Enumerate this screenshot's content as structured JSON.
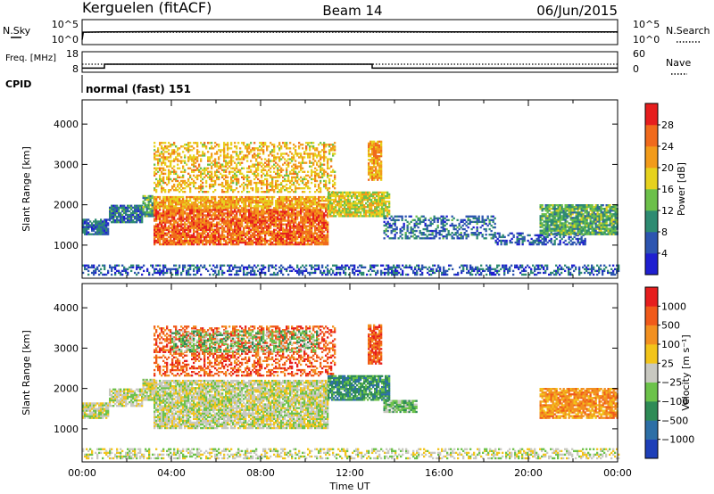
{
  "header": {
    "station": "Kerguelen (fitACF)",
    "beam": "Beam 14",
    "date": "06/Jun/2015"
  },
  "cpid_label": "CPID",
  "cpid_value": "normal (fast) 151",
  "chart_data": [
    {
      "type": "line",
      "panel": "noise",
      "left_label": "N.Sky",
      "right_label": "N.Search",
      "left_ticks": [
        "10^5",
        "10^0"
      ],
      "right_ticks": [
        "10^5",
        "10^0"
      ],
      "series": [
        {
          "name": "N.Sky",
          "style": "solid",
          "x": [
            0,
            0.05,
            1,
            4,
            8,
            12,
            16,
            20,
            24
          ],
          "y": [
            1,
            3.5,
            3.6,
            3.7,
            3.7,
            3.7,
            3.6,
            3.6,
            3.6
          ]
        },
        {
          "name": "N.Search",
          "style": "dotted",
          "x": [
            0,
            24
          ],
          "y": [
            3.5,
            3.5
          ]
        }
      ]
    },
    {
      "type": "line",
      "panel": "frequency",
      "left_label": "Freq. [MHz]",
      "right_label": "Nave",
      "left_ticks": [
        "18",
        "8"
      ],
      "right_ticks": [
        "60",
        "0"
      ],
      "left_range": [
        8,
        18
      ],
      "right_range": [
        0,
        60
      ],
      "series": [
        {
          "name": "Freq.",
          "style": "solid",
          "axis": "left",
          "x": [
            0,
            1,
            1,
            13,
            13,
            24
          ],
          "y": [
            9.8,
            9.8,
            12.0,
            12.0,
            9.8,
            9.8
          ]
        },
        {
          "name": "Nave",
          "style": "dotted",
          "axis": "right",
          "x": [
            0,
            24
          ],
          "y": [
            24,
            24
          ]
        }
      ]
    },
    {
      "type": "heatmap",
      "panel": "power",
      "xlabel": "",
      "ylabel": "Slant Range [km]",
      "colorbar_label": "Power [dB]",
      "x_range_hours": [
        0,
        24
      ],
      "ylim": [
        180,
        4600
      ],
      "y_ticks": [
        1000,
        2000,
        3000,
        4000
      ],
      "colorbar_ticks": [
        "4",
        "8",
        "12",
        "16",
        "20",
        "24",
        "28"
      ],
      "colorbar_range": [
        0,
        32
      ],
      "colors": [
        "#1f1fd0",
        "#2d55b0",
        "#2e8b72",
        "#6cc04a",
        "#e6d21e",
        "#f29b1a",
        "#f06a1c",
        "#e61e1e"
      ],
      "regions": [
        {
          "t0": 0.0,
          "t1": 24.0,
          "r0": 250,
          "r1": 520,
          "v": 6,
          "sparse": true
        },
        {
          "t0": 0.0,
          "t1": 1.2,
          "r0": 1250,
          "r1": 1650,
          "v": 7
        },
        {
          "t0": 1.2,
          "t1": 2.7,
          "r0": 1550,
          "r1": 2000,
          "v": 8
        },
        {
          "t0": 2.7,
          "t1": 3.2,
          "r0": 1700,
          "r1": 2200,
          "v": 12
        },
        {
          "t0": 3.2,
          "t1": 11.0,
          "r0": 1000,
          "r1": 1900,
          "v": 26
        },
        {
          "t0": 3.2,
          "t1": 11.0,
          "r0": 1900,
          "r1": 2200,
          "v": 21
        },
        {
          "t0": 3.2,
          "t1": 11.3,
          "r0": 2300,
          "r1": 3550,
          "v": 20,
          "sparse": true
        },
        {
          "t0": 11.0,
          "t1": 13.8,
          "r0": 1700,
          "r1": 2300,
          "v": 17
        },
        {
          "t0": 12.8,
          "t1": 13.4,
          "r0": 2600,
          "r1": 3550,
          "v": 22
        },
        {
          "t0": 13.5,
          "t1": 18.5,
          "r0": 1150,
          "r1": 1700,
          "v": 8,
          "sparse": true
        },
        {
          "t0": 18.5,
          "t1": 22.5,
          "r0": 1000,
          "r1": 1300,
          "v": 6,
          "sparse": true
        },
        {
          "t0": 20.5,
          "t1": 24.0,
          "r0": 1250,
          "r1": 2000,
          "v": 12
        }
      ]
    },
    {
      "type": "heatmap",
      "panel": "velocity",
      "xlabel": "Time UT",
      "ylabel": "Slant Range [km]",
      "colorbar_label": "Velocity [m s⁻¹]",
      "x_range_hours": [
        0,
        24
      ],
      "x_ticks": [
        "00:00",
        "04:00",
        "08:00",
        "12:00",
        "16:00",
        "20:00",
        "00:00"
      ],
      "ylim": [
        180,
        4600
      ],
      "y_ticks": [
        1000,
        2000,
        3000,
        4000
      ],
      "colorbar_ticks": [
        "1000",
        "500",
        "100",
        "25",
        "−25",
        "−100",
        "−500",
        "−1000"
      ],
      "colors": [
        "#1e3fb8",
        "#2d6fa6",
        "#2e8b56",
        "#6cc24a",
        "#c8c8c0",
        "#f2c41a",
        "#f29020",
        "#f05a1a",
        "#e61e1e"
      ],
      "regions": [
        {
          "t0": 0.0,
          "t1": 24.0,
          "r0": 250,
          "r1": 520,
          "v": 4,
          "sparse": true
        },
        {
          "t0": 0.0,
          "t1": 1.2,
          "r0": 1250,
          "r1": 1650,
          "v": 4
        },
        {
          "t0": 1.2,
          "t1": 2.7,
          "r0": 1550,
          "r1": 2000,
          "v": 4
        },
        {
          "t0": 2.7,
          "t1": 3.2,
          "r0": 1700,
          "r1": 2200,
          "v": 4
        },
        {
          "t0": 3.2,
          "t1": 11.0,
          "r0": 1000,
          "r1": 2200,
          "v": 4
        },
        {
          "t0": 3.2,
          "t1": 11.3,
          "r0": 2300,
          "r1": 3550,
          "v": 7,
          "sparse": true
        },
        {
          "t0": 4.0,
          "t1": 10.5,
          "r0": 2900,
          "r1": 3400,
          "v": 3,
          "sparse": true
        },
        {
          "t0": 11.0,
          "t1": 13.8,
          "r0": 1700,
          "r1": 2300,
          "v": 2
        },
        {
          "t0": 12.8,
          "t1": 13.4,
          "r0": 2600,
          "r1": 3550,
          "v": 7
        },
        {
          "t0": 13.5,
          "t1": 15.0,
          "r0": 1400,
          "r1": 1700,
          "v": 3
        },
        {
          "t0": 20.5,
          "t1": 24.0,
          "r0": 1250,
          "r1": 2000,
          "v": 6
        }
      ]
    }
  ]
}
